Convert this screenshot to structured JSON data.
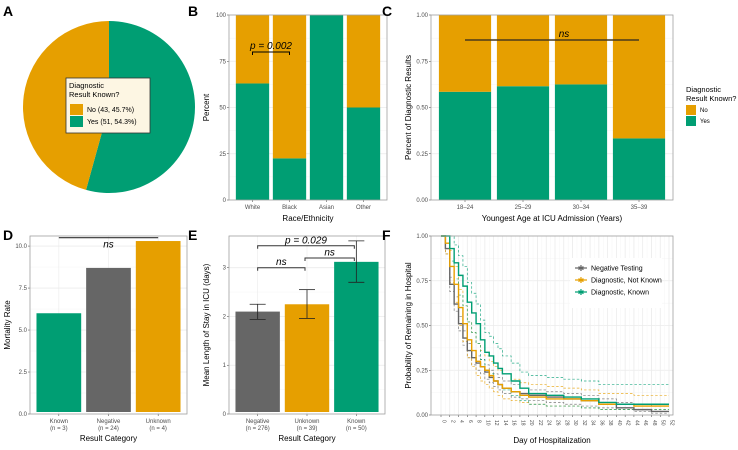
{
  "colors": {
    "yes": "#009E73",
    "no": "#E69F00",
    "negative": "#666666",
    "grid": "#ebebeb",
    "border": "#a0a0a0"
  },
  "chart_data": [
    {
      "id": "A",
      "type": "pie",
      "panel_label": "A",
      "legend_title": "Diagnostic Result Known?",
      "slices": [
        {
          "label": "No (43, 45.7%)",
          "category": "No",
          "count": 43,
          "percent": 45.7
        },
        {
          "label": "Yes (51, 54.3%)",
          "category": "Yes",
          "count": 51,
          "percent": 54.3
        }
      ],
      "legend_placement": "center"
    },
    {
      "id": "B",
      "type": "bar",
      "stacked": true,
      "panel_label": "B",
      "categories": [
        "White",
        "Black",
        "Asian",
        "Other"
      ],
      "series": [
        {
          "name": "Yes",
          "values": [
            63,
            22.5,
            100,
            50
          ]
        },
        {
          "name": "No",
          "values": [
            37,
            77.5,
            0,
            50
          ]
        }
      ],
      "xlabel": "Race/Ethnicity",
      "ylabel": "Percent",
      "ylim": [
        0,
        100
      ],
      "yticks": [
        "0",
        "25",
        "50",
        "75",
        "100"
      ],
      "annotation": {
        "text": "p = 0.002",
        "from": "White",
        "to": "Black",
        "y": 80
      },
      "grid": true
    },
    {
      "id": "C",
      "type": "bar",
      "stacked": true,
      "panel_label": "C",
      "categories": [
        "18–24",
        "25–29",
        "30–34",
        "35–39"
      ],
      "series": [
        {
          "name": "Yes",
          "values": [
            0.585,
            0.615,
            0.625,
            0.333
          ]
        },
        {
          "name": "No",
          "values": [
            0.415,
            0.385,
            0.375,
            0.667
          ]
        }
      ],
      "xlabel": "Youngest Age at ICU Admission (Years)",
      "ylabel": "Percent of Diagnostic Results",
      "ylim": [
        0,
        1
      ],
      "yticks": [
        "0.00",
        "0.25",
        "0.50",
        "0.75",
        "1.00"
      ],
      "annotation": {
        "text": "ns",
        "from": "18–24",
        "to": "35–39",
        "y": 0.865
      },
      "legend": {
        "title_line1": "Diagnostic",
        "title_line2": "Result Known?",
        "items": [
          "No",
          "Yes"
        ],
        "placement": "right"
      },
      "grid": true
    },
    {
      "id": "D",
      "type": "bar",
      "panel_label": "D",
      "categories": [
        "Known",
        "Negative",
        "Unknown"
      ],
      "category_n": [
        "(n = 3)",
        "(n = 24)",
        "(n = 4)"
      ],
      "values": [
        6.0,
        8.7,
        10.3
      ],
      "bar_colors": [
        "yes",
        "negative",
        "no"
      ],
      "xlabel": "Result Category",
      "ylabel": "Mortality Rate",
      "ylim": [
        0,
        10.6
      ],
      "yticks": [
        "0.0",
        "2.5",
        "5.0",
        "7.5",
        "10.0"
      ],
      "annotation": {
        "text": "ns",
        "from": "Known",
        "to": "Unknown",
        "y": 10.5
      },
      "grid": true
    },
    {
      "id": "E",
      "type": "bar",
      "panel_label": "E",
      "categories": [
        "Negative",
        "Unknown",
        "Known"
      ],
      "category_n": [
        "(n = 276)",
        "(n = 39)",
        "(n = 50)"
      ],
      "values": [
        2.1,
        2.25,
        3.12
      ],
      "error_low": [
        1.94,
        1.96,
        2.7
      ],
      "error_high": [
        2.25,
        2.55,
        3.55
      ],
      "bar_colors": [
        "negative",
        "no",
        "yes"
      ],
      "xlabel": "Result Category",
      "ylabel": "Mean Length of Stay in ICU (days)",
      "ylim": [
        0,
        3.65
      ],
      "yticks": [
        "0",
        "1",
        "2",
        "3"
      ],
      "annotations": [
        {
          "text": "p = 0.029",
          "from": 0,
          "to": 2,
          "y": 3.45
        },
        {
          "text": "ns",
          "from": 0,
          "to": 1,
          "y": 3.0
        },
        {
          "text": "ns",
          "from": 1,
          "to": 2,
          "y": 3.2
        }
      ],
      "grid": true
    },
    {
      "id": "F",
      "type": "line",
      "step": true,
      "panel_label": "F",
      "xlabel": "Day of Hospitalization",
      "ylabel": "Probability of Remaining in Hospital",
      "xlim": [
        0,
        52
      ],
      "ylim": [
        0,
        1
      ],
      "xticks": [
        "0",
        "2",
        "4",
        "6",
        "8",
        "10",
        "12",
        "14",
        "16",
        "18",
        "20",
        "22",
        "24",
        "26",
        "28",
        "30",
        "32",
        "34",
        "36",
        "38",
        "40",
        "42",
        "44",
        "46",
        "48",
        "50",
        "52"
      ],
      "yticks": [
        "0.00",
        "0.25",
        "0.50",
        "0.75",
        "1.00"
      ],
      "legend": {
        "items": [
          "Negative Testing",
          "Diagnostic, Not Known",
          "Diagnostic, Known"
        ],
        "placement": "top-right"
      },
      "series": [
        {
          "name": "Negative Testing",
          "color": "negative",
          "x": [
            0,
            1,
            2,
            3,
            4,
            5,
            6,
            7,
            8,
            9,
            10,
            11,
            12,
            13,
            14,
            16,
            18,
            20,
            24,
            28,
            32,
            36,
            40,
            44,
            48,
            52
          ],
          "y": [
            1.0,
            0.93,
            0.73,
            0.62,
            0.51,
            0.43,
            0.36,
            0.32,
            0.29,
            0.27,
            0.24,
            0.21,
            0.19,
            0.17,
            0.15,
            0.13,
            0.12,
            0.11,
            0.1,
            0.09,
            0.08,
            0.06,
            0.04,
            0.03,
            0.02,
            0.02
          ],
          "lower": [
            1.0,
            0.9,
            0.69,
            0.58,
            0.47,
            0.39,
            0.32,
            0.28,
            0.25,
            0.23,
            0.2,
            0.18,
            0.16,
            0.14,
            0.12,
            0.1,
            0.09,
            0.08,
            0.07,
            0.06,
            0.05,
            0.04,
            0.03,
            0.02,
            0.01,
            0.01
          ],
          "upper": [
            1.0,
            0.96,
            0.77,
            0.66,
            0.55,
            0.47,
            0.4,
            0.36,
            0.33,
            0.31,
            0.28,
            0.25,
            0.23,
            0.21,
            0.19,
            0.17,
            0.15,
            0.14,
            0.13,
            0.12,
            0.11,
            0.09,
            0.07,
            0.06,
            0.05,
            0.05
          ]
        },
        {
          "name": "Diagnostic, Not Known",
          "color": "no",
          "x": [
            0,
            1,
            2,
            3,
            4,
            5,
            6,
            7,
            8,
            9,
            10,
            11,
            12,
            13,
            14,
            16,
            18,
            20,
            24,
            28,
            32,
            36,
            40,
            44,
            48,
            52
          ],
          "y": [
            1.0,
            0.96,
            0.83,
            0.73,
            0.6,
            0.51,
            0.42,
            0.36,
            0.3,
            0.27,
            0.25,
            0.22,
            0.19,
            0.17,
            0.15,
            0.13,
            0.11,
            0.1,
            0.09,
            0.09,
            0.08,
            0.06,
            0.06,
            0.05,
            0.05,
            0.05
          ],
          "lower": [
            1.0,
            0.9,
            0.74,
            0.63,
            0.5,
            0.41,
            0.32,
            0.27,
            0.22,
            0.19,
            0.17,
            0.15,
            0.13,
            0.11,
            0.09,
            0.08,
            0.07,
            0.06,
            0.05,
            0.05,
            0.04,
            0.03,
            0.03,
            0.03,
            0.03,
            0.03
          ],
          "upper": [
            1.0,
            1.0,
            0.92,
            0.83,
            0.7,
            0.61,
            0.52,
            0.46,
            0.4,
            0.36,
            0.33,
            0.3,
            0.27,
            0.25,
            0.23,
            0.2,
            0.18,
            0.17,
            0.16,
            0.15,
            0.14,
            0.12,
            0.12,
            0.11,
            0.11,
            0.11
          ]
        },
        {
          "name": "Diagnostic, Known",
          "color": "yes",
          "x": [
            0,
            1,
            2,
            3,
            4,
            5,
            6,
            7,
            8,
            9,
            10,
            11,
            12,
            13,
            14,
            16,
            18,
            20,
            24,
            28,
            32,
            36,
            40,
            44,
            48,
            52
          ],
          "y": [
            1.0,
            1.0,
            0.93,
            0.85,
            0.78,
            0.72,
            0.63,
            0.57,
            0.51,
            0.42,
            0.35,
            0.33,
            0.29,
            0.26,
            0.23,
            0.19,
            0.15,
            0.12,
            0.11,
            0.1,
            0.09,
            0.07,
            0.06,
            0.06,
            0.06,
            0.06
          ],
          "lower": [
            1.0,
            1.0,
            0.86,
            0.76,
            0.67,
            0.61,
            0.52,
            0.46,
            0.4,
            0.31,
            0.25,
            0.23,
            0.19,
            0.17,
            0.14,
            0.11,
            0.08,
            0.06,
            0.05,
            0.05,
            0.04,
            0.03,
            0.03,
            0.03,
            0.03,
            0.03
          ],
          "upper": [
            1.0,
            1.0,
            1.0,
            0.95,
            0.89,
            0.83,
            0.74,
            0.68,
            0.62,
            0.53,
            0.46,
            0.44,
            0.4,
            0.37,
            0.33,
            0.29,
            0.24,
            0.22,
            0.21,
            0.2,
            0.19,
            0.17,
            0.17,
            0.17,
            0.17,
            0.17
          ]
        }
      ],
      "grid": true
    }
  ]
}
